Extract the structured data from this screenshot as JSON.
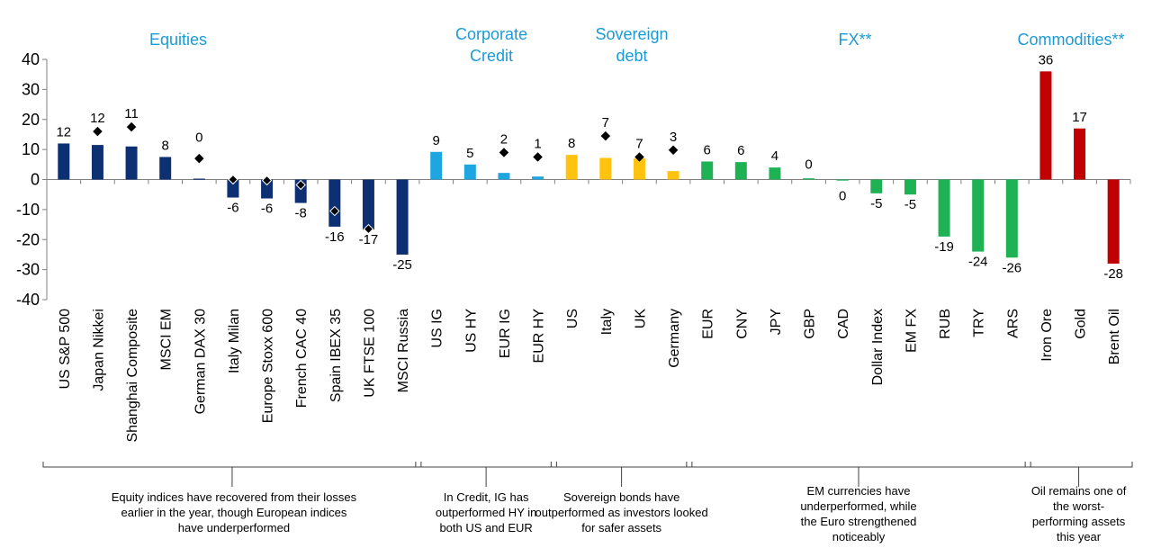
{
  "chart_data": {
    "type": "bar",
    "title": "",
    "xlabel": "",
    "ylabel": "",
    "ylim": [
      -40,
      40
    ],
    "yticks": [
      40,
      30,
      20,
      10,
      0,
      -10,
      -20,
      -30,
      -40
    ],
    "grid": false,
    "categories": [
      "US S&P 500",
      "Japan Nikkei",
      "Shanghai Composite",
      "MSCI EM",
      "German DAX 30",
      "Italy Milan",
      "Europe Stoxx 600",
      "French CAC 40",
      "Spain IBEX 35",
      "UK FTSE 100",
      "MSCI Russia",
      "US IG",
      "US HY",
      "EUR IG",
      "EUR HY",
      "US",
      "Italy",
      "UK",
      "Germany",
      "EUR",
      "CNY",
      "JPY",
      "GBP",
      "CAD",
      "Dollar Index",
      "EM FX",
      "RUB",
      "TRY",
      "ARS",
      "Iron Ore",
      "Gold",
      "Brent Oil"
    ],
    "values": [
      12,
      12,
      11,
      8,
      0,
      -6,
      -6,
      -8,
      -16,
      -17,
      -25,
      9,
      5,
      2,
      1,
      8,
      7,
      7,
      3,
      6,
      6,
      4,
      0,
      0,
      -5,
      -5,
      -19,
      -24,
      -26,
      36,
      17,
      -28
    ],
    "bar_values": [
      12,
      11.5,
      11,
      7.5,
      0.3,
      -6,
      -6.3,
      -7.8,
      -15.7,
      -16.7,
      -25,
      9.2,
      5,
      2.2,
      1,
      8.2,
      7.2,
      7,
      2.8,
      6,
      5.8,
      4,
      0.4,
      0,
      -4.6,
      -5,
      -19,
      -24,
      -26,
      36,
      17,
      -28
    ],
    "data_labels": [
      "12",
      "12",
      "11",
      "8",
      "0",
      "-6",
      "-6",
      "-8",
      "-16",
      "-17",
      "-25",
      "9",
      "5",
      "2",
      "1",
      "8",
      "7",
      "7",
      "3",
      "6",
      "6",
      "4",
      "0",
      "0",
      "-5",
      "-5",
      "-19",
      "-24",
      "-26",
      "36",
      "17",
      "-28"
    ],
    "markers": {
      "Japan Nikkei": 16,
      "Shanghai Composite": 17.5,
      "German DAX 30": 7,
      "Italy Milan": 0,
      "Europe Stoxx 600": -0.3,
      "French CAC 40": -1.8,
      "Spain IBEX 35": -10.5,
      "UK FTSE 100": -16.5,
      "EUR IG": 9,
      "EUR HY": 7.5,
      "Italy": 14.5,
      "UK": 7.5,
      "Germany": 9.8
    },
    "groups": [
      {
        "name": "Equities",
        "title_lines": [
          "Equities"
        ],
        "start": 0,
        "end": 10,
        "color": "#0d3072",
        "note_lines": [
          "Equity indices have recovered from their losses",
          "earlier in the year, though European indices",
          "have underperformed"
        ]
      },
      {
        "name": "Corporate Credit",
        "title_lines": [
          "Corporate",
          "Credit"
        ],
        "start": 11,
        "end": 14,
        "color": "#1ea6e0",
        "note_lines": [
          "In Credit, IG has",
          "outperformed HY in",
          "both US and EUR"
        ]
      },
      {
        "name": "Sovereign debt",
        "title_lines": [
          "Sovereign",
          "debt"
        ],
        "start": 15,
        "end": 18,
        "color": "#ffc20e",
        "note_lines": [
          "Sovereign bonds have",
          "outperformed as investors looked",
          "for safer assets"
        ]
      },
      {
        "name": "FX**",
        "title_lines": [
          "FX**"
        ],
        "start": 19,
        "end": 28,
        "color": "#1fb255",
        "note_lines": [
          "EM currencies have",
          "underperformed, while",
          "the Euro strengthened",
          "noticeably"
        ]
      },
      {
        "name": "Commodities**",
        "title_lines": [
          "Commodities**"
        ],
        "start": 29,
        "end": 31,
        "color": "#c00000",
        "note_lines": [
          "Oil remains one of",
          "the worst-",
          "performing assets",
          "this year"
        ]
      }
    ]
  }
}
